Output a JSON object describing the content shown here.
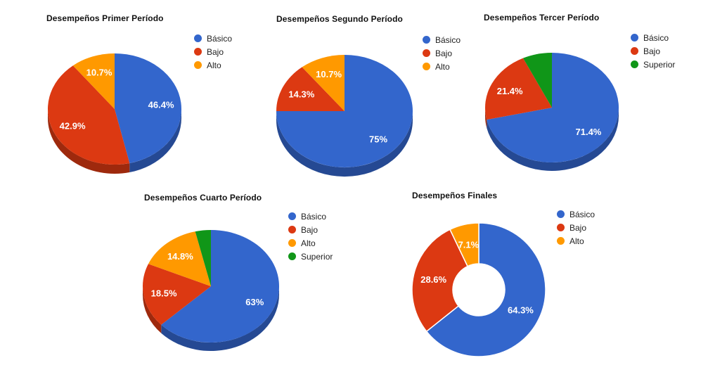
{
  "page": {
    "background": "#ffffff"
  },
  "palette": {
    "basico": "#3366CC",
    "bajo": "#DC3912",
    "alto": "#FF9900",
    "superior": "#109618",
    "label_text": "#ffffff",
    "title_text": "#111111",
    "legend_text": "#222222"
  },
  "chart_data": [
    {
      "type": "pie",
      "variant": "pie3d",
      "title": "Desempeños Primer Período",
      "categories": [
        "Básico",
        "Bajo",
        "Alto"
      ],
      "values": [
        46.4,
        42.9,
        10.7
      ],
      "labels": [
        "46.4%",
        "42.9%",
        "10.7%"
      ],
      "colors": [
        "#3366CC",
        "#DC3912",
        "#FF9900"
      ],
      "legend_position": "right",
      "is_3d": true,
      "pie_hole": 0,
      "start_angle": "12 o'clock, clockwise"
    },
    {
      "type": "pie",
      "variant": "pie3d",
      "title": "Desempeños Segundo Período",
      "categories": [
        "Básico",
        "Bajo",
        "Alto"
      ],
      "values": [
        75,
        14.3,
        10.7
      ],
      "labels": [
        "75%",
        "14.3%",
        "10.7%"
      ],
      "colors": [
        "#3366CC",
        "#DC3912",
        "#FF9900"
      ],
      "legend_position": "right",
      "is_3d": true,
      "pie_hole": 0,
      "start_angle": "12 o'clock, clockwise"
    },
    {
      "type": "pie",
      "variant": "pie3d",
      "title": "Desempeños Tercer Período",
      "categories": [
        "Básico",
        "Bajo",
        "Superior"
      ],
      "values": [
        71.4,
        21.4,
        7.1
      ],
      "labels": [
        "71.4%",
        "21.4%",
        ""
      ],
      "colors": [
        "#3366CC",
        "#DC3912",
        "#109618"
      ],
      "legend_position": "right",
      "is_3d": true,
      "pie_hole": 0,
      "start_angle": "12 o'clock, clockwise"
    },
    {
      "type": "pie",
      "variant": "pie3d",
      "title": "Desempeños Cuarto Período",
      "categories": [
        "Básico",
        "Bajo",
        "Alto",
        "Superior"
      ],
      "values": [
        63,
        18.5,
        14.8,
        3.7
      ],
      "labels": [
        "63%",
        "18.5%",
        "14.8%",
        ""
      ],
      "colors": [
        "#3366CC",
        "#DC3912",
        "#FF9900",
        "#109618"
      ],
      "legend_position": "right",
      "is_3d": true,
      "pie_hole": 0,
      "start_angle": "12 o'clock, clockwise"
    },
    {
      "type": "pie",
      "variant": "donut",
      "title": "Desempeños Finales",
      "categories": [
        "Básico",
        "Bajo",
        "Alto"
      ],
      "values": [
        64.3,
        28.6,
        7.1
      ],
      "labels": [
        "64.3%",
        "28.6%",
        "7.1%"
      ],
      "colors": [
        "#3366CC",
        "#DC3912",
        "#FF9900"
      ],
      "legend_position": "right",
      "is_3d": false,
      "pie_hole": 0.4,
      "start_angle": "12 o'clock, clockwise"
    }
  ]
}
